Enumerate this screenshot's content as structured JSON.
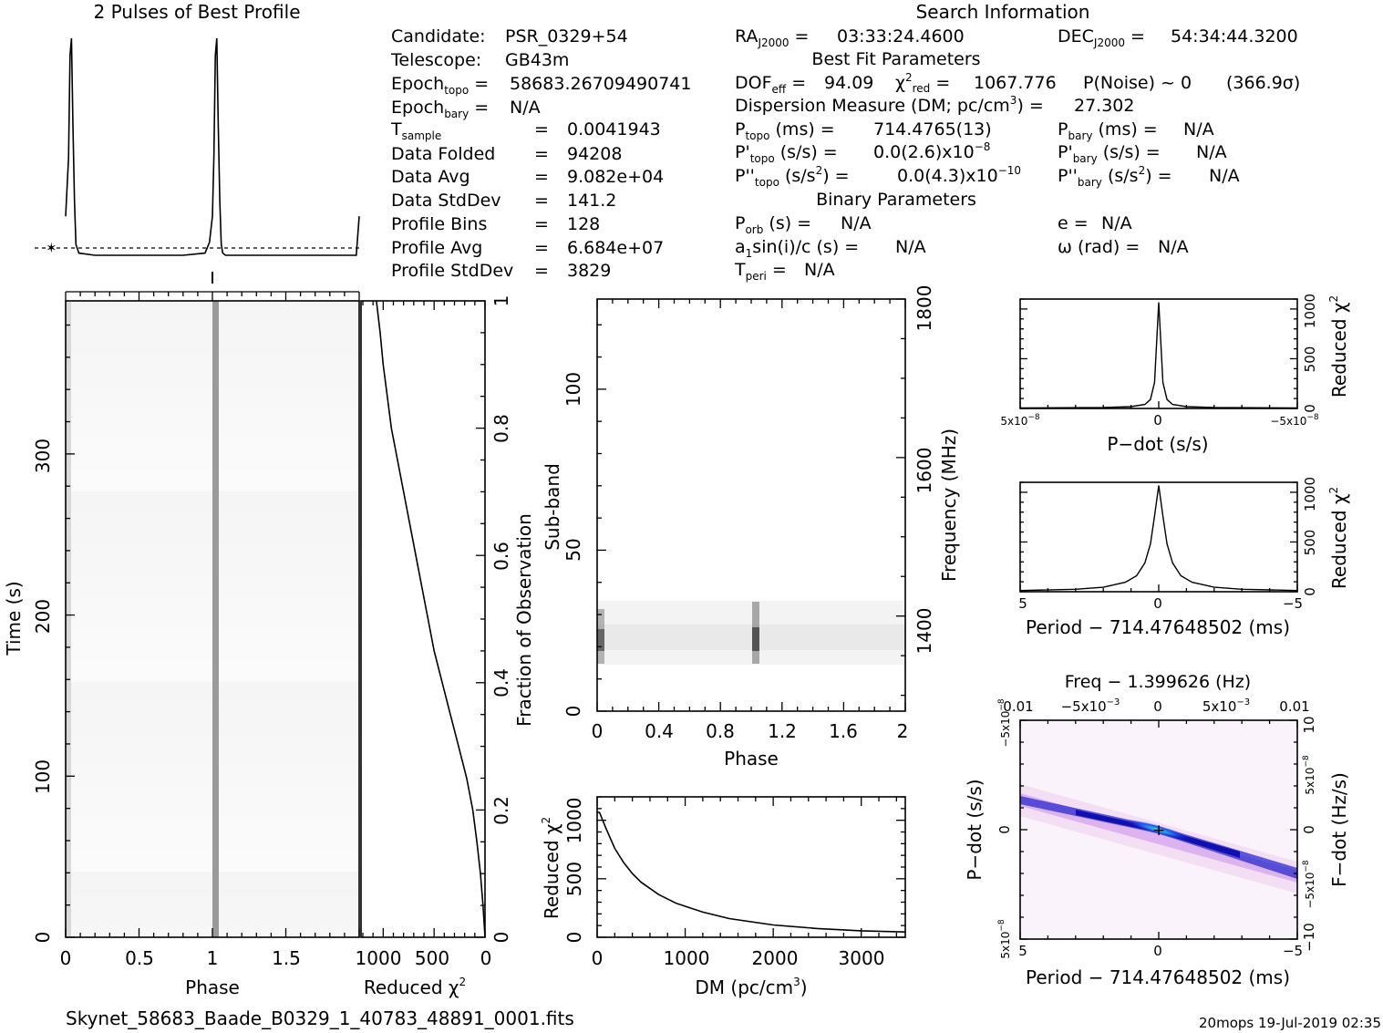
{
  "titles": {
    "profile": "2 Pulses of Best Profile",
    "search": "Search Information",
    "best_fit": "Best Fit Parameters",
    "binary": "Binary Parameters",
    "filename": "Skynet_58683_Baade_B0329_1_40783_48891_0001.fits",
    "footer": "20mops  19-Jul-2019 02:35"
  },
  "info": {
    "candidate_label": "Candidate:",
    "candidate": "PSR_0329+54",
    "telescope_label": "Telescope:",
    "telescope": "GB43m",
    "epoch_topo": "58683.26709490741",
    "epoch_bary": "N/A",
    "t_sample": "0.0041943",
    "data_folded_label": "Data Folded",
    "data_folded": "94208",
    "data_avg_label": "Data Avg",
    "data_avg": "9.082e+04",
    "data_std_label": "Data StdDev",
    "data_std": "141.2",
    "profile_bins_label": "Profile Bins",
    "profile_bins": "128",
    "profile_avg_label": "Profile Avg",
    "profile_avg": "6.684e+07",
    "profile_std_label": "Profile StdDev",
    "profile_std": "3829",
    "ra": "03:33:24.4600",
    "dec": "54:34:44.3200",
    "dof_eff": "94.09",
    "chi2_red": "1067.776",
    "p_noise": "P(Noise) ~ 0",
    "sigma": "(366.9σ)",
    "dm": "27.302",
    "p_topo": "714.4765(13)",
    "p_bary": "N/A",
    "pdot_topo_mant": "0.0(2.6)x10",
    "pdot_topo_exp": "−8",
    "pdot_bary": "N/A",
    "pddot_topo_mant": "0.0(4.3)x10",
    "pddot_topo_exp": "−10",
    "pddot_bary": "N/A",
    "p_orb": "N/A",
    "a1sini": "N/A",
    "t_peri": "N/A",
    "ecc": "N/A",
    "omega": "N/A"
  },
  "chart_data": [
    {
      "type": "line",
      "name": "profile",
      "title": "2 Pulses of Best Profile",
      "x": [
        0.0,
        0.02,
        0.03,
        0.04,
        0.05,
        0.06,
        0.07,
        0.09,
        0.2,
        0.5,
        0.8,
        0.95,
        0.98,
        1.0,
        1.01,
        1.02,
        1.03,
        1.04,
        1.05,
        1.06,
        1.07,
        1.09,
        1.2,
        1.5,
        1.8,
        1.98,
        2.0
      ],
      "y": [
        0.18,
        0.45,
        0.92,
        1.0,
        0.6,
        0.25,
        0.05,
        0.01,
        0.0,
        0.0,
        0.0,
        0.01,
        0.06,
        0.18,
        0.45,
        0.92,
        1.0,
        0.6,
        0.25,
        0.05,
        0.01,
        0.0,
        0.0,
        0.0,
        0.0,
        0.0,
        0.18
      ],
      "xlim": [
        0,
        2
      ]
    },
    {
      "type": "heatmap",
      "name": "time-phase",
      "xlabel": "Phase",
      "ylabel": "Time (s)",
      "xlim": [
        0,
        2
      ],
      "ylim": [
        0,
        395
      ],
      "x_ticks": [
        "0",
        "0.5",
        "1",
        "1.5"
      ],
      "y_ticks": [
        "0",
        "100",
        "200",
        "300"
      ],
      "pulse_phases": [
        0.02,
        1.02
      ]
    },
    {
      "type": "line",
      "name": "reduced-chi2-vs-fraction",
      "xlabel": "Reduced χ",
      "ylabel": "Fraction of Observation",
      "x_ticks": [
        "1000",
        "500",
        "0"
      ],
      "y_ticks": [
        "0",
        "0.2",
        "0.4",
        "0.6",
        "0.8",
        "1"
      ],
      "xlim": [
        1200,
        0
      ],
      "x": [
        0,
        20,
        45,
        80,
        120,
        180,
        260,
        340,
        420,
        500,
        560,
        620,
        680,
        740,
        800,
        860,
        920,
        960,
        1000,
        1030,
        1067
      ],
      "y": [
        0.0,
        0.05,
        0.1,
        0.15,
        0.2,
        0.25,
        0.3,
        0.35,
        0.4,
        0.45,
        0.5,
        0.55,
        0.6,
        0.65,
        0.7,
        0.75,
        0.8,
        0.85,
        0.9,
        0.95,
        1.0
      ]
    },
    {
      "type": "heatmap",
      "name": "subband-phase",
      "xlabel": "Phase",
      "ylabel": "Sub-band",
      "y2label": "Frequency (MHz)",
      "xlim": [
        0,
        2
      ],
      "ylim": [
        0,
        128
      ],
      "x_ticks": [
        "0",
        "0.4",
        "0.8",
        "1.2",
        "1.6",
        "2"
      ],
      "y_ticks": [
        "0",
        "50",
        "100"
      ],
      "y2_ticks": [
        "1400",
        "1600",
        "1800"
      ],
      "active_subbands": [
        15,
        34
      ]
    },
    {
      "type": "line",
      "name": "dm-curve",
      "xlabel": "DM (pc/cm",
      "ylabel": "Reduced χ",
      "x_ticks": [
        "0",
        "1000",
        "2000",
        "3000"
      ],
      "y_ticks": [
        "0",
        "500",
        "1000"
      ],
      "xlim": [
        0,
        3500
      ],
      "ylim": [
        0,
        1200
      ],
      "x": [
        0,
        27,
        100,
        200,
        300,
        400,
        500,
        700,
        900,
        1200,
        1500,
        2000,
        2500,
        3000,
        3500
      ],
      "y": [
        1068,
        1067,
        930,
        760,
        640,
        545,
        470,
        365,
        290,
        215,
        160,
        105,
        75,
        55,
        45
      ]
    },
    {
      "type": "line",
      "name": "pdot-curve",
      "xlabel": "P−dot (s/s)",
      "ylabel": "Reduced χ",
      "x_ticks": [
        "5x10",
        "0",
        "−5x10"
      ],
      "y_ticks": [
        "0",
        "500",
        "1000"
      ],
      "xlim": [
        5e-08,
        -5e-08
      ],
      "ylim": [
        0,
        1100
      ],
      "x": [
        5e-08,
        2e-08,
        1e-08,
        5e-09,
        3e-09,
        1.5e-09,
        0,
        -1.5e-09,
        -3e-09,
        -5e-09,
        -1e-08,
        -2e-08,
        -5e-08
      ],
      "y": [
        5,
        10,
        18,
        40,
        90,
        260,
        1068,
        260,
        90,
        40,
        18,
        10,
        5
      ]
    },
    {
      "type": "line",
      "name": "period-curve",
      "xlabel": "Period − 714.47648502 (ms)",
      "ylabel": "Reduced χ",
      "x_ticks": [
        "5",
        "0",
        "−5"
      ],
      "y_ticks": [
        "0",
        "500",
        "1000"
      ],
      "xlim": [
        5,
        -5
      ],
      "ylim": [
        0,
        1100
      ],
      "x": [
        5,
        3,
        2,
        1.2,
        0.8,
        0.5,
        0.3,
        0.15,
        0,
        -0.15,
        -0.3,
        -0.5,
        -0.8,
        -1.2,
        -2,
        -3,
        -5
      ],
      "y": [
        12,
        25,
        45,
        95,
        160,
        290,
        480,
        760,
        1068,
        760,
        480,
        290,
        160,
        95,
        45,
        25,
        12
      ]
    },
    {
      "type": "heatmap",
      "name": "p-pdot-plane",
      "title": "Freq − 1.399626 (Hz)",
      "xlabel": "Period − 714.47648502 (ms)",
      "ylabel": "P−dot (s/s)",
      "y2label": "F−dot (Hz/s)",
      "x_ticks": [
        "5",
        "0",
        "−5"
      ],
      "x2_ticks": [
        "0.01",
        "−5x10",
        "0",
        "5x10",
        "0.01"
      ],
      "y_ticks": [
        "5x10",
        "0",
        "−5x10"
      ],
      "y2_ticks": [
        "10",
        "5x10",
        "0",
        "−5x10",
        "−10"
      ],
      "best": [
        0,
        0
      ]
    }
  ]
}
